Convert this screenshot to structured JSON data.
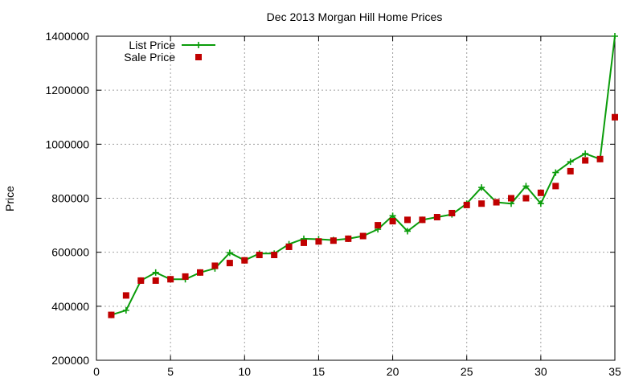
{
  "chart_data": {
    "type": "line",
    "title": "Dec 2013 Morgan Hill Home Prices",
    "xlabel": "",
    "ylabel": "Price",
    "xlim": [
      0,
      35
    ],
    "ylim": [
      200000,
      1400000
    ],
    "x_ticks": [
      "0",
      "5",
      "10",
      "15",
      "20",
      "25",
      "30",
      "35"
    ],
    "y_ticks": [
      "200000",
      "400000",
      "600000",
      "800000",
      "1000000",
      "1200000",
      "1400000"
    ],
    "grid": true,
    "legend_position": "top-left",
    "x": [
      1,
      2,
      3,
      4,
      5,
      6,
      7,
      8,
      9,
      10,
      11,
      12,
      13,
      14,
      15,
      16,
      17,
      18,
      19,
      20,
      21,
      22,
      23,
      24,
      25,
      26,
      27,
      28,
      29,
      30,
      31,
      32,
      33,
      34,
      35
    ],
    "series": [
      {
        "name": "List Price",
        "style": "line-with-plus-markers",
        "color": "#0a9c0a",
        "values": [
          368000,
          385000,
          495000,
          525000,
          500000,
          500000,
          525000,
          540000,
          598000,
          570000,
          595000,
          595000,
          630000,
          650000,
          648000,
          645000,
          650000,
          660000,
          685000,
          735000,
          678000,
          720000,
          730000,
          740000,
          780000,
          840000,
          785000,
          780000,
          845000,
          780000,
          895000,
          935000,
          965000,
          945000,
          1400000
        ]
      },
      {
        "name": "Sale Price",
        "style": "square-markers",
        "color": "#c00000",
        "values": [
          368000,
          440000,
          495000,
          495000,
          500000,
          510000,
          525000,
          550000,
          560000,
          570000,
          590000,
          590000,
          620000,
          635000,
          640000,
          643000,
          650000,
          660000,
          700000,
          715000,
          720000,
          720000,
          730000,
          745000,
          775000,
          780000,
          785000,
          800000,
          800000,
          820000,
          845000,
          900000,
          940000,
          945000,
          1100000
        ]
      }
    ]
  }
}
